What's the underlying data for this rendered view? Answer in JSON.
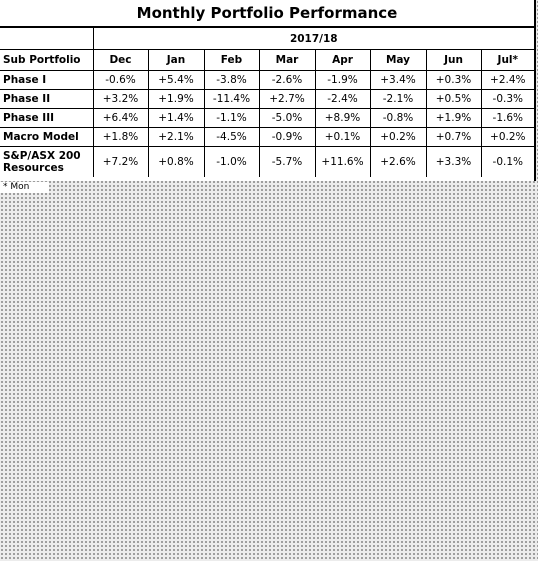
{
  "title": "Monthly Portfolio Performance",
  "period": "2017/18",
  "row_header": "Sub Portfolio",
  "months": [
    "Dec",
    "Jan",
    "Feb",
    "Mar",
    "Apr",
    "May",
    "Jun",
    "Jul*"
  ],
  "rows": [
    {
      "name": "Phase I",
      "values": [
        "-0.6%",
        "+5.4%",
        "-3.8%",
        "-2.6%",
        "-1.9%",
        "+3.4%",
        "+0.3%",
        "+2.4%"
      ]
    },
    {
      "name": "Phase II",
      "values": [
        "+3.2%",
        "+1.9%",
        "-11.4%",
        "+2.7%",
        "-2.4%",
        "-2.1%",
        "+0.5%",
        "-0.3%"
      ]
    },
    {
      "name": "Phase III",
      "values": [
        "+6.4%",
        "+1.4%",
        "-1.1%",
        "-5.0%",
        "+8.9%",
        "-0.8%",
        "+1.9%",
        "-1.6%"
      ]
    },
    {
      "name": "Macro Model",
      "values": [
        "+1.8%",
        "+2.1%",
        "-4.5%",
        "-0.9%",
        "+0.1%",
        "+0.2%",
        "+0.7%",
        "+0.2%"
      ]
    },
    {
      "name": "S&P/ASX 200 Resources",
      "values": [
        "+7.2%",
        "+0.8%",
        "-1.0%",
        "-5.7%",
        "+11.6%",
        "+2.6%",
        "+3.3%",
        "-0.1%"
      ]
    }
  ],
  "footnote": "* Mon"
}
